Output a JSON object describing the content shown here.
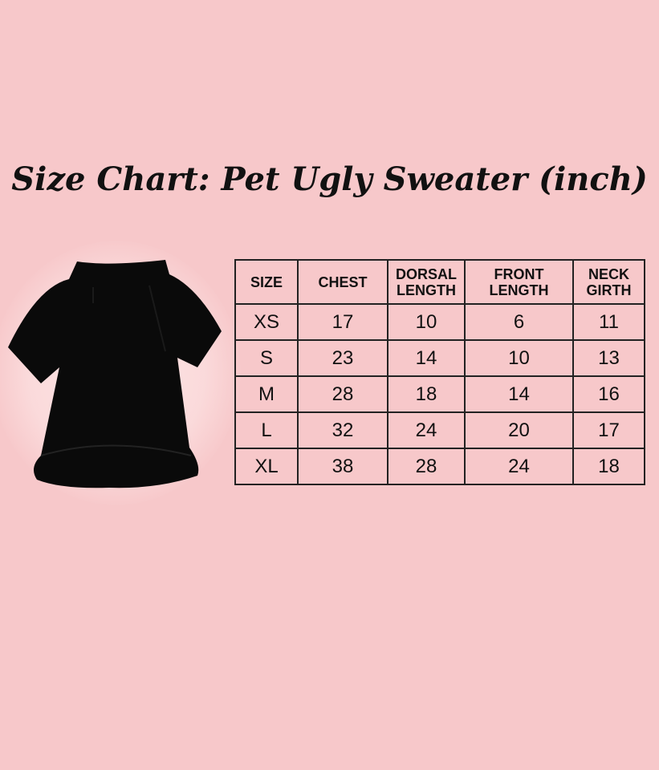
{
  "title": "Size Chart: Pet Ugly Sweater (inch)",
  "colors": {
    "background": "#f7c8ca",
    "sweater": "#0a0a0a",
    "border": "#222222"
  },
  "table": {
    "headers": [
      "SIZE",
      "CHEST",
      "DORSAL LENGTH",
      "FRONT LENGTH",
      "NECK GIRTH"
    ],
    "rows": [
      [
        "XS",
        "17",
        "10",
        "6",
        "11"
      ],
      [
        "S",
        "23",
        "14",
        "10",
        "13"
      ],
      [
        "M",
        "28",
        "18",
        "14",
        "16"
      ],
      [
        "L",
        "32",
        "24",
        "20",
        "17"
      ],
      [
        "XL",
        "38",
        "28",
        "24",
        "18"
      ]
    ]
  }
}
